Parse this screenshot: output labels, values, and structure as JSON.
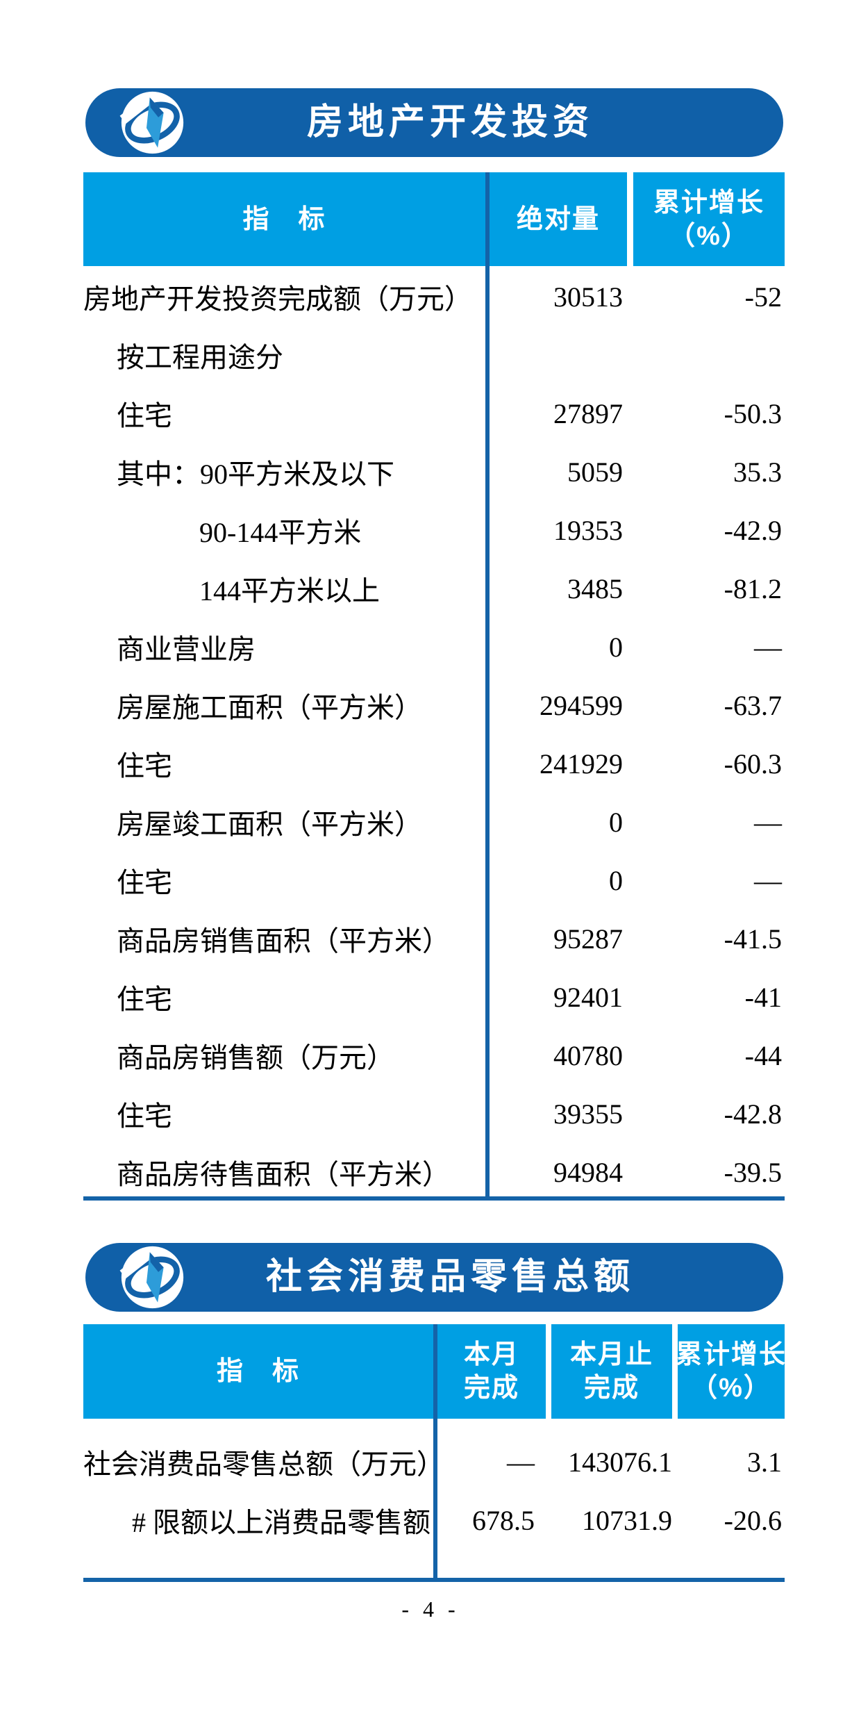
{
  "page": {
    "number": "- 4 -"
  },
  "colors": {
    "banner_blue": "#1060A8",
    "header_blue": "#009FE3",
    "line_blue": "#1463A8",
    "logo_light": "#2D9CD9",
    "logo_dark": "#1362A9",
    "text": "#000000"
  },
  "tables": [
    {
      "banner_title": "房地产开发投资",
      "logo": "national-bureau-of-statistics-emblem",
      "indicator_header": "指　标",
      "value_headers": [
        [
          "绝对量"
        ],
        [
          "累计增长",
          "（%）"
        ]
      ],
      "rows": [
        {
          "label": "房地产开发投资完成额（万元）",
          "indent": 0,
          "values": [
            "30513",
            "-52"
          ]
        },
        {
          "label": "按工程用途分",
          "indent": 1,
          "values": [
            "",
            ""
          ]
        },
        {
          "label": "住宅",
          "indent": 1,
          "values": [
            "27897",
            "-50.3"
          ]
        },
        {
          "label": "其中：90平方米及以下",
          "indent": 1,
          "values": [
            "5059",
            "35.3"
          ]
        },
        {
          "label": "90-144平方米",
          "indent": 2,
          "values": [
            "19353",
            "-42.9"
          ]
        },
        {
          "label": "144平方米以上",
          "indent": 2,
          "values": [
            "3485",
            "-81.2"
          ]
        },
        {
          "label": "商业营业房",
          "indent": 1,
          "values": [
            "0",
            "—"
          ]
        },
        {
          "label": "房屋施工面积（平方米）",
          "indent": 1,
          "values": [
            "294599",
            "-63.7"
          ]
        },
        {
          "label": "住宅",
          "indent": 1,
          "values": [
            "241929",
            "-60.3"
          ]
        },
        {
          "label": "房屋竣工面积（平方米）",
          "indent": 1,
          "values": [
            "0",
            "—"
          ]
        },
        {
          "label": "住宅",
          "indent": 1,
          "values": [
            "0",
            "—"
          ]
        },
        {
          "label": "商品房销售面积（平方米）",
          "indent": 1,
          "values": [
            "95287",
            "-41.5"
          ]
        },
        {
          "label": "住宅",
          "indent": 1,
          "values": [
            "92401",
            "-41"
          ]
        },
        {
          "label": "商品房销售额（万元）",
          "indent": 1,
          "values": [
            "40780",
            "-44"
          ]
        },
        {
          "label": "住宅",
          "indent": 1,
          "values": [
            "39355",
            "-42.8"
          ]
        },
        {
          "label": "商品房待售面积（平方米）",
          "indent": 1,
          "values": [
            "94984",
            "-39.5"
          ]
        }
      ]
    },
    {
      "banner_title": "社会消费品零售总额",
      "logo": "national-bureau-of-statistics-emblem",
      "indicator_header": "指　标",
      "value_headers": [
        [
          "本月",
          "完成"
        ],
        [
          "本月止",
          "完成"
        ],
        [
          "累计增长",
          "（%）"
        ]
      ],
      "rows": [
        {
          "label": "社会消费品零售总额（万元）",
          "indent": 0,
          "values": [
            "—",
            "143076.1",
            "3.1"
          ]
        },
        {
          "label": "# 限额以上消费品零售额",
          "indent": 1,
          "values": [
            "678.5",
            "10731.9",
            "-20.6"
          ]
        }
      ]
    }
  ]
}
